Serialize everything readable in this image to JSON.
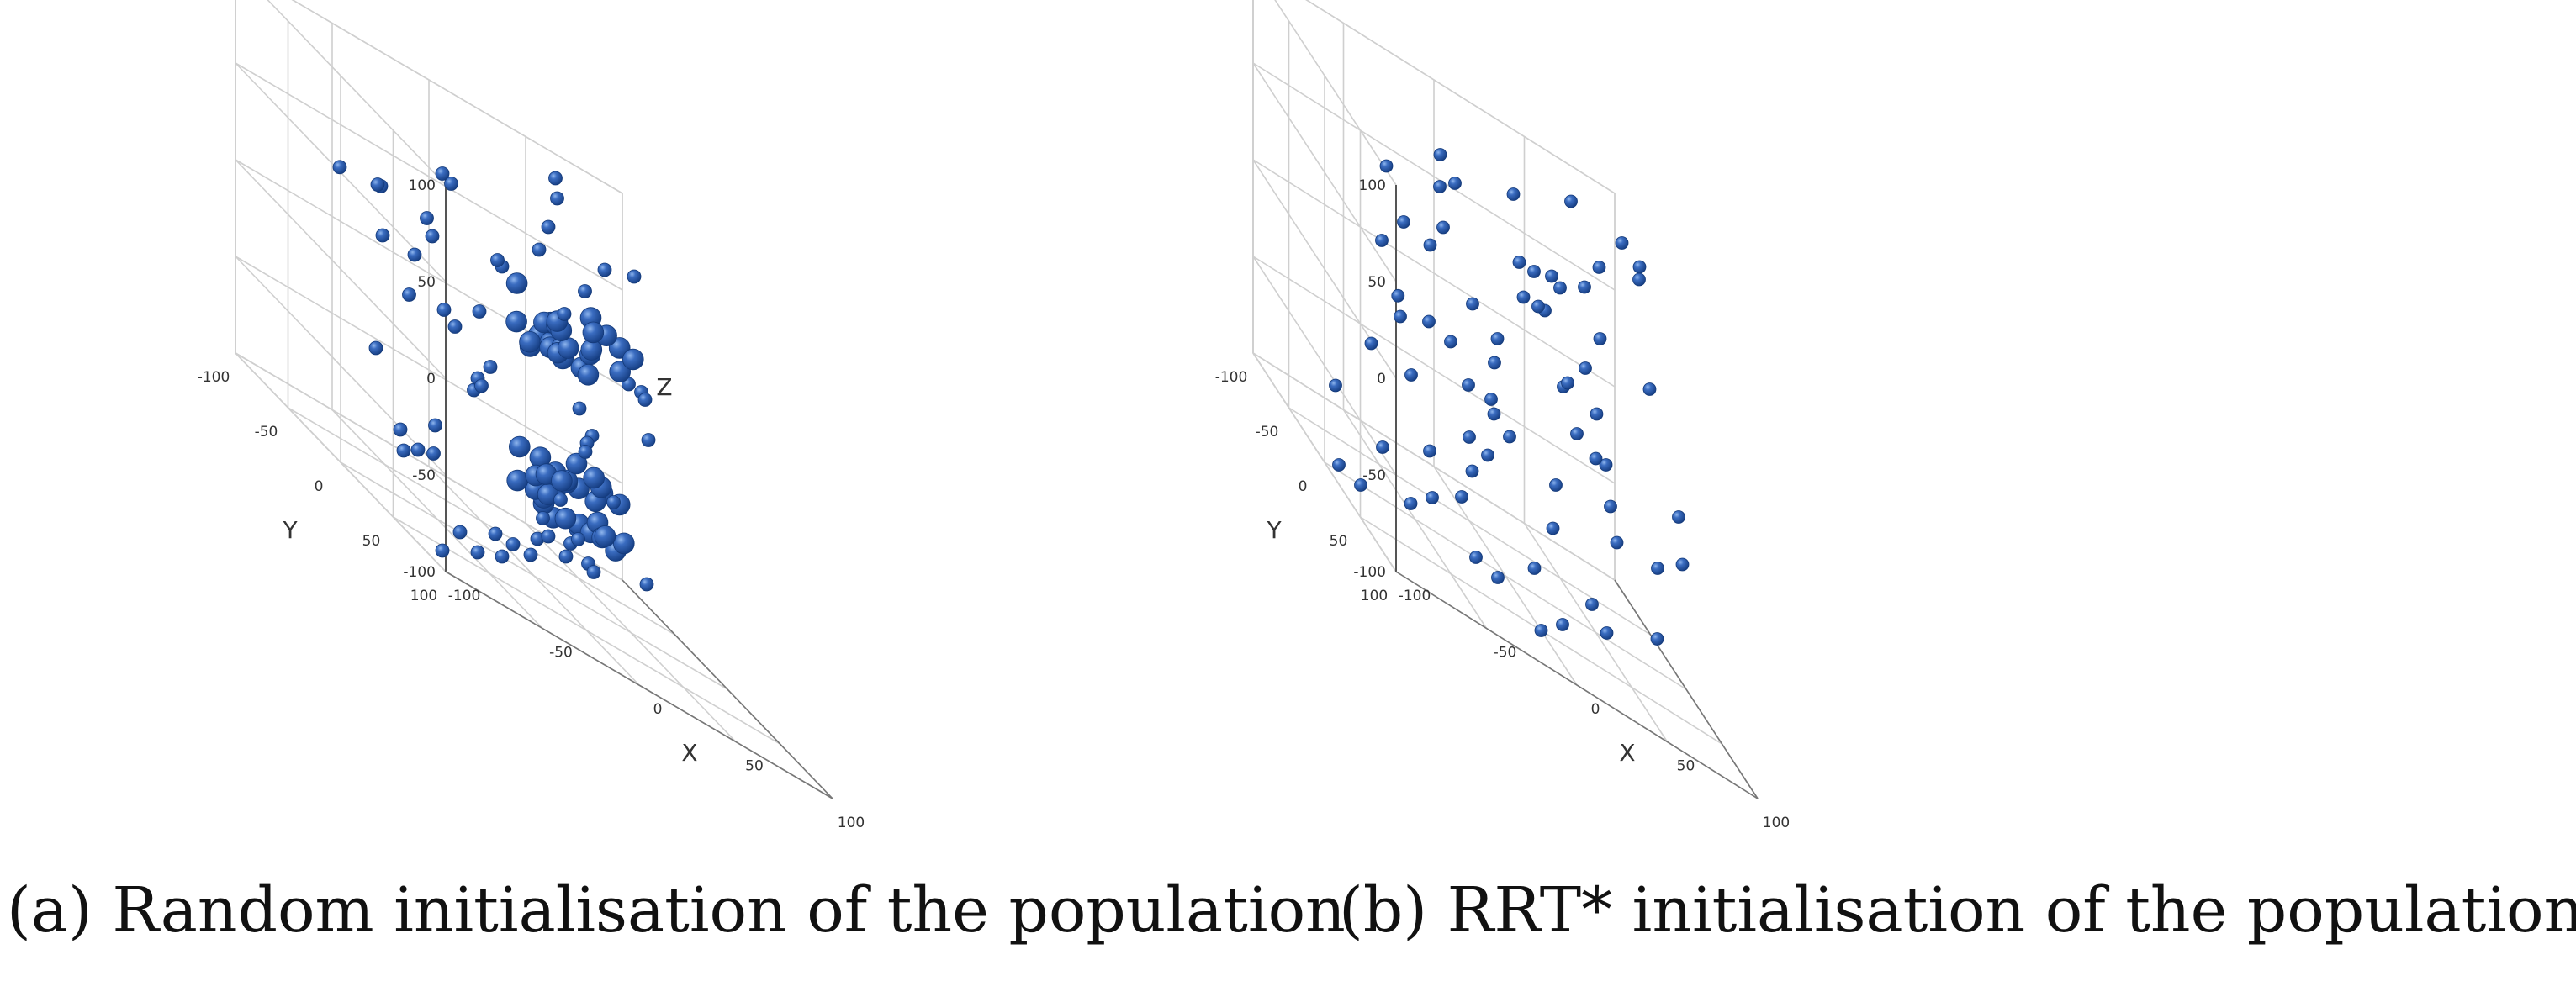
{
  "captions": {
    "a": "(a) Random initialisation of the population",
    "b": "(b) RRT* initialisation of the population"
  },
  "colors": {
    "point": "#1f4e9c",
    "point_highlight": "#6d9de0",
    "grid": "#cfcfcf",
    "pane": "#ffffff",
    "text": "#333333"
  },
  "chart_data": [
    {
      "type": "scatter",
      "projection": "3d",
      "xlabel": "X",
      "ylabel": "Y",
      "zlabel": "Z",
      "xlim": [
        -100,
        100
      ],
      "ylim": [
        -100,
        100
      ],
      "zlim": [
        -100,
        100
      ],
      "xticks": [
        -100,
        -50,
        0,
        50,
        100
      ],
      "yticks": [
        -100,
        -50,
        0,
        50,
        100
      ],
      "zticks": [
        -100,
        -50,
        0,
        50,
        100
      ],
      "grid": true,
      "clusters": [
        {
          "center": [
            -10,
            40,
            40
          ],
          "count": 14
        },
        {
          "center": [
            40,
            -10,
            35
          ],
          "count": 12
        },
        {
          "center": [
            15,
            10,
            -45
          ],
          "count": 36
        }
      ],
      "points": [
        [
          -80,
          60,
          95
        ],
        [
          -70,
          50,
          90
        ],
        [
          60,
          -90,
          90
        ],
        [
          50,
          -70,
          85
        ],
        [
          -90,
          20,
          60
        ],
        [
          -30,
          60,
          85
        ],
        [
          40,
          -60,
          70
        ],
        [
          80,
          -80,
          60
        ],
        [
          -100,
          40,
          40
        ],
        [
          -60,
          80,
          70
        ],
        [
          -90,
          80,
          30
        ],
        [
          30,
          -90,
          30
        ],
        [
          70,
          -100,
          20
        ],
        [
          90,
          -60,
          10
        ],
        [
          -80,
          90,
          0
        ],
        [
          -100,
          90,
          -30
        ],
        [
          -20,
          80,
          20
        ],
        [
          -50,
          40,
          30
        ],
        [
          -40,
          20,
          -10
        ],
        [
          -70,
          10,
          10
        ],
        [
          -90,
          70,
          -50
        ],
        [
          -100,
          60,
          -60
        ],
        [
          -30,
          -20,
          0
        ],
        [
          10,
          -60,
          -20
        ],
        [
          60,
          -60,
          -30
        ],
        [
          70,
          -80,
          -40
        ],
        [
          -60,
          0,
          -70
        ],
        [
          -80,
          20,
          -60
        ],
        [
          -30,
          90,
          -50
        ],
        [
          -10,
          70,
          -60
        ],
        [
          30,
          -30,
          -60
        ],
        [
          50,
          -50,
          -80
        ],
        [
          90,
          -90,
          -60
        ],
        [
          -80,
          60,
          -100
        ],
        [
          -60,
          40,
          -90
        ],
        [
          -40,
          20,
          -100
        ],
        [
          -20,
          0,
          -90
        ],
        [
          0,
          -20,
          -95
        ],
        [
          20,
          -40,
          -100
        ],
        [
          40,
          -60,
          -90
        ],
        [
          60,
          -80,
          -100
        ],
        [
          80,
          -40,
          -80
        ],
        [
          -60,
          80,
          -80
        ],
        [
          -20,
          40,
          -70
        ],
        [
          20,
          20,
          -75
        ],
        [
          10,
          -10,
          -70
        ],
        [
          -10,
          30,
          -50
        ],
        [
          30,
          0,
          -10
        ],
        [
          -50,
          -10,
          50
        ],
        [
          10,
          30,
          70
        ],
        [
          -70,
          -20,
          50
        ],
        [
          0,
          90,
          50
        ],
        [
          30,
          40,
          95
        ],
        [
          -95,
          -10,
          50
        ],
        [
          50,
          10,
          30
        ],
        [
          -40,
          -40,
          20
        ],
        [
          0,
          -50,
          -30
        ],
        [
          -60,
          -40,
          -40
        ],
        [
          70,
          -20,
          0
        ],
        [
          -20,
          -60,
          30
        ]
      ]
    },
    {
      "type": "scatter",
      "projection": "3d",
      "xlabel": "X",
      "ylabel": "Y",
      "zlabel": "",
      "xlim": [
        -100,
        100
      ],
      "ylim": [
        -100,
        100
      ],
      "zlim": [
        -100,
        100
      ],
      "xticks": [
        -100,
        -50,
        0,
        50,
        100
      ],
      "yticks": [
        -100,
        -50,
        0,
        50,
        100
      ],
      "zticks": [
        -100,
        -50,
        0,
        50,
        100
      ],
      "grid": true,
      "points": [
        [
          -100,
          80,
          60
        ],
        [
          -80,
          60,
          70
        ],
        [
          -95,
          90,
          40
        ],
        [
          -70,
          70,
          30
        ],
        [
          -60,
          100,
          20
        ],
        [
          -90,
          40,
          -10
        ],
        [
          -70,
          30,
          10
        ],
        [
          -50,
          50,
          20
        ],
        [
          -30,
          60,
          0
        ],
        [
          -60,
          20,
          -20
        ],
        [
          -40,
          90,
          50
        ],
        [
          -20,
          70,
          90
        ],
        [
          0,
          40,
          80
        ],
        [
          -10,
          90,
          100
        ],
        [
          20,
          60,
          95
        ],
        [
          40,
          30,
          100
        ],
        [
          70,
          10,
          100
        ],
        [
          90,
          -40,
          90
        ],
        [
          60,
          -60,
          95
        ],
        [
          -30,
          30,
          40
        ],
        [
          -50,
          80,
          -30
        ],
        [
          -80,
          100,
          -50
        ],
        [
          -40,
          40,
          -60
        ],
        [
          -20,
          0,
          -40
        ],
        [
          0,
          -20,
          -20
        ],
        [
          20,
          20,
          -30
        ],
        [
          40,
          -20,
          10
        ],
        [
          60,
          -40,
          20
        ],
        [
          80,
          -70,
          30
        ],
        [
          100,
          -90,
          80
        ],
        [
          -10,
          10,
          10
        ],
        [
          10,
          0,
          50
        ],
        [
          30,
          -30,
          40
        ],
        [
          50,
          0,
          -10
        ],
        [
          70,
          -30,
          -40
        ],
        [
          90,
          -100,
          -20
        ],
        [
          -60,
          -20,
          -80
        ],
        [
          -80,
          0,
          -100
        ],
        [
          -40,
          60,
          -80
        ],
        [
          -20,
          40,
          -90
        ],
        [
          0,
          80,
          -80
        ],
        [
          20,
          -10,
          -90
        ],
        [
          40,
          20,
          -80
        ],
        [
          60,
          -10,
          -100
        ],
        [
          80,
          10,
          -80
        ],
        [
          100,
          -40,
          -60
        ],
        [
          -30,
          -30,
          -70
        ],
        [
          10,
          -50,
          -60
        ],
        [
          30,
          -70,
          -50
        ],
        [
          50,
          -60,
          -80
        ],
        [
          -90,
          -10,
          -60
        ],
        [
          -100,
          20,
          -90
        ],
        [
          0,
          100,
          30
        ],
        [
          20,
          90,
          20
        ],
        [
          -70,
          90,
          90
        ],
        [
          -50,
          -40,
          60
        ],
        [
          60,
          50,
          60
        ],
        [
          80,
          40,
          0
        ],
        [
          30,
          80,
          -20
        ],
        [
          -10,
          -80,
          20
        ],
        [
          70,
          -90,
          -10
        ],
        [
          -60,
          60,
          100
        ],
        [
          40,
          -90,
          70
        ],
        [
          10,
          30,
          60
        ],
        [
          -80,
          70,
          -70
        ],
        [
          90,
          20,
          -30
        ],
        [
          -20,
          -20,
          80
        ],
        [
          50,
          -50,
          50
        ],
        [
          -40,
          10,
          100
        ],
        [
          0,
          50,
          -100
        ]
      ]
    }
  ]
}
